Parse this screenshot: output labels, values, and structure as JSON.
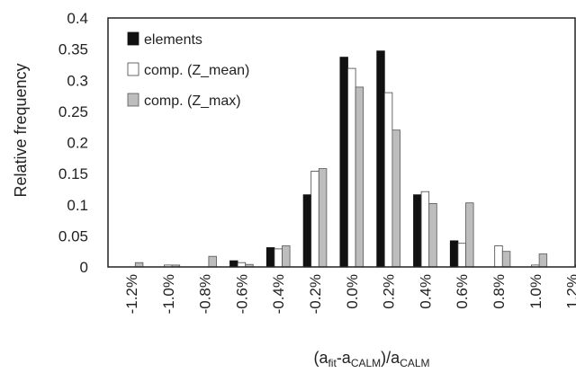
{
  "chart_data": {
    "type": "bar",
    "categories": [
      "-1.2%",
      "-1.0%",
      "-0.8%",
      "-0.6%",
      "-0.4%",
      "-0.2%",
      "0.0%",
      "0.2%",
      "0.4%",
      "0.6%",
      "0.8%",
      "1.0%",
      "1.2%"
    ],
    "series": [
      {
        "name": "elements",
        "color": "#111111",
        "outline": "#111111",
        "values": [
          0,
          0,
          0,
          0.01,
          0.031,
          0.116,
          0.337,
          0.347,
          0.116,
          0.042,
          0,
          0,
          0
        ]
      },
      {
        "name": "comp. (Z_mean)",
        "color": "#ffffff",
        "outline": "#444444",
        "values": [
          0,
          0.003,
          0,
          0.007,
          0.029,
          0.154,
          0.319,
          0.28,
          0.121,
          0.038,
          0.034,
          0.003,
          0
        ]
      },
      {
        "name": "comp. (Z_max)",
        "color": "#bdbdbd",
        "outline": "#555555",
        "values": [
          0.007,
          0.003,
          0.017,
          0.004,
          0.034,
          0.158,
          0.289,
          0.22,
          0.102,
          0.103,
          0.025,
          0.021,
          0.003
        ]
      }
    ],
    "ylim": [
      0,
      0.4
    ],
    "yticks": [
      "0",
      "0.05",
      "0.1",
      "0.15",
      "0.2",
      "0.25",
      "0.3",
      "0.35",
      "0.4"
    ],
    "ylabel": "Relative frequency",
    "xlabel_parts": {
      "open": "(a",
      "sub1": "fit",
      "mid": "-a",
      "sub2": "CALM",
      "close": ")/a",
      "sub3": "CALM"
    },
    "legend_position": "top-left",
    "grid": false
  }
}
